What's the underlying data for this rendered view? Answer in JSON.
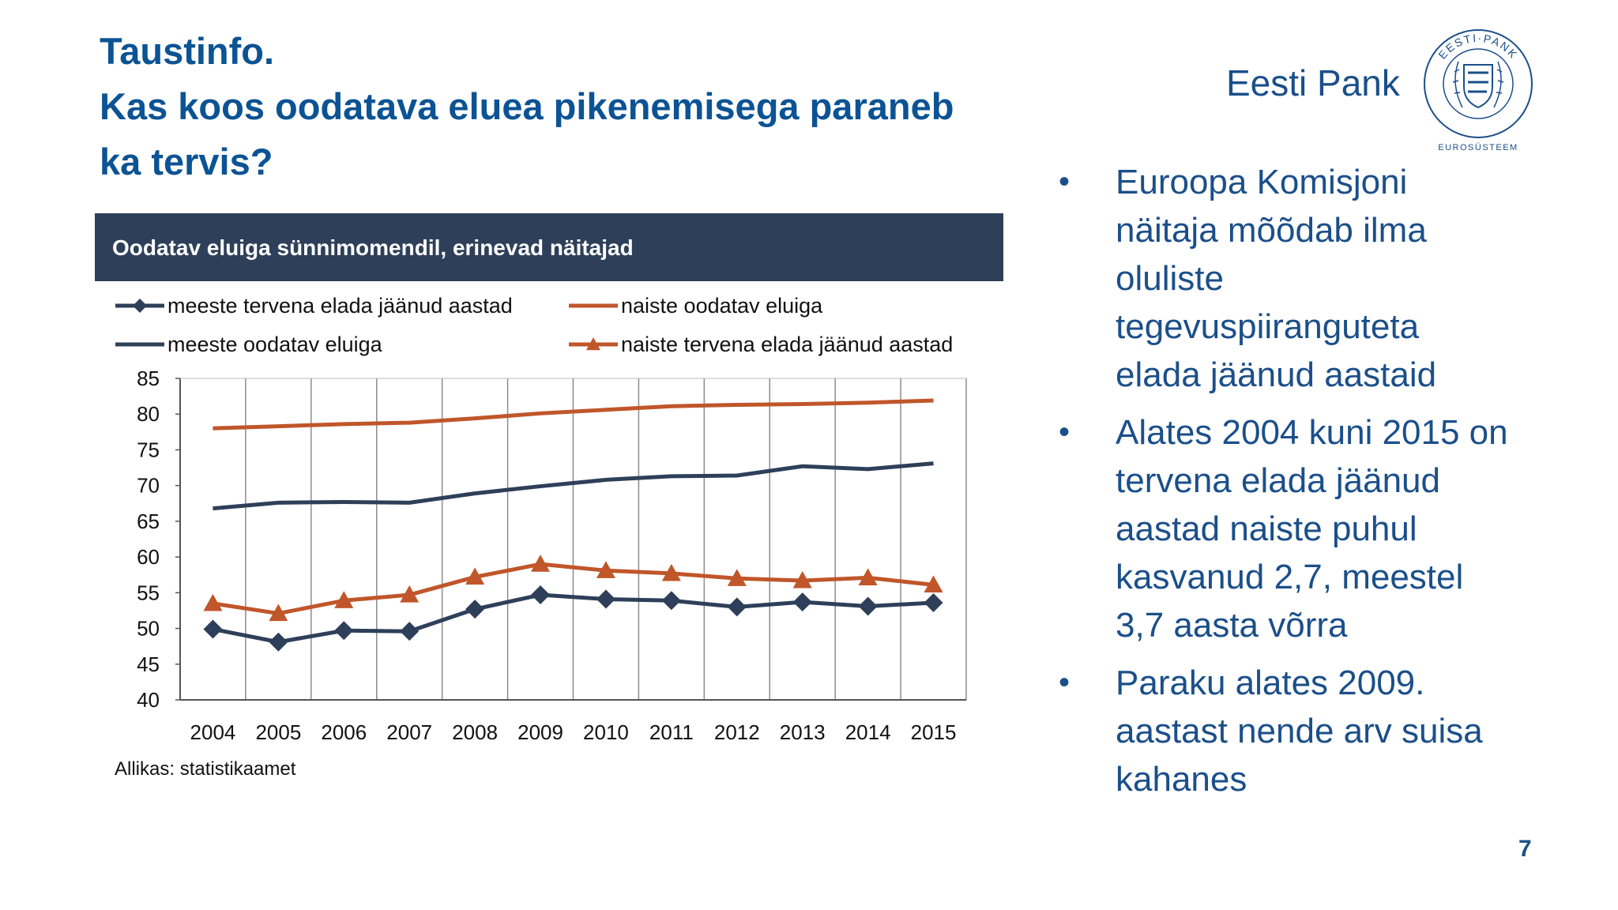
{
  "slide": {
    "title_lines": [
      "Taustinfo.",
      "Kas koos oodatava eluea pikenemisega paraneb",
      "ka tervis?"
    ],
    "brand": "Eesti Pank",
    "logo": {
      "ring_top": "EESTI·PANK",
      "caption": "EUROSÜSTEEM",
      "icon": "eesti-pank-coat-of-arms-icon",
      "color": "#1b4f8a"
    },
    "bullets": [
      {
        "lines": [
          "Euroopa  Komisjoni",
          "näitaja mõõdab ilma",
          "oluliste",
          "tegevuspiiranguteta",
          "elada jäänud aastaid"
        ]
      },
      {
        "lines": [
          "Alates 2004 kuni 2015 on",
          "tervena elada jäänud",
          "aastad naiste puhul",
          "kasvanud 2,7, meestel",
          "3,7 aasta võrra"
        ]
      },
      {
        "lines": [
          "Paraku alates 2009.",
          "aastast  nende arv suisa",
          "kahanes"
        ]
      }
    ],
    "bullet_symbol": "•",
    "source": "Allikas: statistikaamet",
    "page_number": "7"
  },
  "chart_data": {
    "type": "line",
    "title": "Oodatav eluiga sünnimomendil, erinevad näitajad",
    "x": [
      "2004",
      "2005",
      "2006",
      "2007",
      "2008",
      "2009",
      "2010",
      "2011",
      "2012",
      "2013",
      "2014",
      "2015"
    ],
    "yticks": [
      "85",
      "80",
      "75",
      "70",
      "65",
      "60",
      "55",
      "50",
      "45",
      "40"
    ],
    "ylim": [
      40,
      85
    ],
    "grid": "vertical",
    "legend_position": "top",
    "series": [
      {
        "name": "meeste tervena elada jäänud aastad",
        "color": "#2e3f59",
        "marker": "diamond",
        "values": [
          49.9,
          48.1,
          49.7,
          49.6,
          52.7,
          54.7,
          54.1,
          53.9,
          53.0,
          53.7,
          53.1,
          53.6
        ]
      },
      {
        "name": "naiste oodatav eluiga",
        "color": "#c0562a",
        "marker": "none",
        "values": [
          78.0,
          78.3,
          78.6,
          78.8,
          79.4,
          80.1,
          80.6,
          81.1,
          81.3,
          81.4,
          81.6,
          81.9
        ]
      },
      {
        "name": "meeste oodatav eluiga",
        "color": "#2e3f59",
        "marker": "none",
        "values": [
          66.8,
          67.6,
          67.7,
          67.6,
          68.9,
          69.9,
          70.8,
          71.3,
          71.4,
          72.7,
          72.3,
          73.1
        ]
      },
      {
        "name": "naiste tervena elada jäänud aastad",
        "color": "#c0562a",
        "marker": "triangle",
        "values": [
          53.5,
          52.1,
          53.9,
          54.7,
          57.2,
          59.0,
          58.1,
          57.7,
          57.0,
          56.7,
          57.1,
          56.1
        ]
      }
    ]
  }
}
